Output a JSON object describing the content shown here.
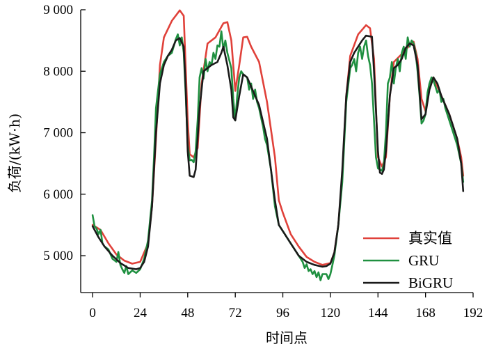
{
  "chart_data": {
    "type": "line",
    "xlabel": "时间点",
    "ylabel": "负荷/(kW·h)",
    "xlim": [
      -6,
      192
    ],
    "ylim": [
      4400,
      9000
    ],
    "xticks": [
      0,
      24,
      48,
      72,
      96,
      120,
      144,
      168,
      192
    ],
    "xtick_labels": [
      "0",
      "24",
      "48",
      "72",
      "96",
      "120",
      "144",
      "168",
      "192"
    ],
    "yticks": [
      5000,
      6000,
      7000,
      8000,
      9000
    ],
    "ytick_labels": [
      "5 000",
      "6 000",
      "7 000",
      "8 000",
      "9 000"
    ],
    "grid": false,
    "legend_position": "bottom-right",
    "series": [
      {
        "name": "真实值",
        "color": "#e0413a",
        "points": [
          [
            0,
            5500
          ],
          [
            4,
            5420
          ],
          [
            8,
            5200
          ],
          [
            12,
            5020
          ],
          [
            16,
            4920
          ],
          [
            20,
            4870
          ],
          [
            24,
            4900
          ],
          [
            28,
            5200
          ],
          [
            30,
            5800
          ],
          [
            32,
            6900
          ],
          [
            34,
            8100
          ],
          [
            36,
            8550
          ],
          [
            40,
            8820
          ],
          [
            44,
            8990
          ],
          [
            46,
            8900
          ],
          [
            48,
            7200
          ],
          [
            49,
            6650
          ],
          [
            51,
            6600
          ],
          [
            53,
            6750
          ],
          [
            55,
            7800
          ],
          [
            58,
            8450
          ],
          [
            62,
            8550
          ],
          [
            66,
            8780
          ],
          [
            68,
            8800
          ],
          [
            70,
            8500
          ],
          [
            72,
            7680
          ],
          [
            74,
            8100
          ],
          [
            76,
            8550
          ],
          [
            78,
            8560
          ],
          [
            80,
            8400
          ],
          [
            84,
            8150
          ],
          [
            88,
            7500
          ],
          [
            92,
            6600
          ],
          [
            94,
            5900
          ],
          [
            96,
            5700
          ],
          [
            100,
            5350
          ],
          [
            104,
            5150
          ],
          [
            108,
            4980
          ],
          [
            112,
            4900
          ],
          [
            116,
            4850
          ],
          [
            120,
            4880
          ],
          [
            122,
            5050
          ],
          [
            124,
            5500
          ],
          [
            126,
            6300
          ],
          [
            128,
            7600
          ],
          [
            130,
            8250
          ],
          [
            134,
            8600
          ],
          [
            138,
            8750
          ],
          [
            140,
            8700
          ],
          [
            142,
            8200
          ],
          [
            144,
            6600
          ],
          [
            146,
            6450
          ],
          [
            148,
            6600
          ],
          [
            150,
            7600
          ],
          [
            152,
            8150
          ],
          [
            156,
            8280
          ],
          [
            160,
            8420
          ],
          [
            162,
            8480
          ],
          [
            164,
            8200
          ],
          [
            166,
            7550
          ],
          [
            168,
            7350
          ],
          [
            170,
            7800
          ],
          [
            172,
            7900
          ],
          [
            176,
            7600
          ],
          [
            180,
            7300
          ],
          [
            184,
            6900
          ],
          [
            186,
            6600
          ],
          [
            187,
            6300
          ]
        ]
      },
      {
        "name": "GRU",
        "color": "#1f9040",
        "points": [
          [
            0,
            5660
          ],
          [
            1,
            5480
          ],
          [
            2,
            5440
          ],
          [
            3,
            5350
          ],
          [
            4,
            5420
          ],
          [
            5,
            5200
          ],
          [
            6,
            5150
          ],
          [
            8,
            5100
          ],
          [
            10,
            4950
          ],
          [
            12,
            4900
          ],
          [
            13,
            5060
          ],
          [
            14,
            4850
          ],
          [
            15,
            4780
          ],
          [
            16,
            4720
          ],
          [
            17,
            4830
          ],
          [
            18,
            4700
          ],
          [
            20,
            4760
          ],
          [
            22,
            4720
          ],
          [
            24,
            4780
          ],
          [
            26,
            4950
          ],
          [
            28,
            5250
          ],
          [
            30,
            5900
          ],
          [
            31,
            6600
          ],
          [
            32,
            7400
          ],
          [
            34,
            7950
          ],
          [
            36,
            8150
          ],
          [
            38,
            8250
          ],
          [
            40,
            8300
          ],
          [
            42,
            8520
          ],
          [
            43,
            8600
          ],
          [
            44,
            8420
          ],
          [
            45,
            8550
          ],
          [
            46,
            8300
          ],
          [
            47,
            7600
          ],
          [
            48,
            6800
          ],
          [
            49,
            6550
          ],
          [
            50,
            6560
          ],
          [
            51,
            6520
          ],
          [
            52,
            6700
          ],
          [
            53,
            7200
          ],
          [
            54,
            7900
          ],
          [
            55,
            8050
          ],
          [
            56,
            7880
          ],
          [
            57,
            8200
          ],
          [
            58,
            8000
          ],
          [
            59,
            8150
          ],
          [
            60,
            8100
          ],
          [
            61,
            8300
          ],
          [
            62,
            8200
          ],
          [
            63,
            8420
          ],
          [
            64,
            8400
          ],
          [
            65,
            8650
          ],
          [
            66,
            8350
          ],
          [
            67,
            8500
          ],
          [
            68,
            8300
          ],
          [
            70,
            8050
          ],
          [
            71,
            7550
          ],
          [
            72,
            7200
          ],
          [
            73,
            7600
          ],
          [
            74,
            7900
          ],
          [
            75,
            8000
          ],
          [
            76,
            7950
          ],
          [
            78,
            7900
          ],
          [
            79,
            7700
          ],
          [
            80,
            7800
          ],
          [
            81,
            7550
          ],
          [
            82,
            7700
          ],
          [
            83,
            7500
          ],
          [
            84,
            7400
          ],
          [
            85,
            7250
          ],
          [
            86,
            7100
          ],
          [
            87,
            6900
          ],
          [
            88,
            6800
          ],
          [
            90,
            6400
          ],
          [
            91,
            6100
          ],
          [
            92,
            5800
          ],
          [
            94,
            5500
          ],
          [
            96,
            5400
          ],
          [
            98,
            5300
          ],
          [
            100,
            5200
          ],
          [
            102,
            5100
          ],
          [
            104,
            5000
          ],
          [
            105,
            4950
          ],
          [
            106,
            4900
          ],
          [
            107,
            4800
          ],
          [
            108,
            4860
          ],
          [
            109,
            4750
          ],
          [
            110,
            4780
          ],
          [
            111,
            4700
          ],
          [
            112,
            4750
          ],
          [
            113,
            4650
          ],
          [
            114,
            4730
          ],
          [
            115,
            4600
          ],
          [
            116,
            4700
          ],
          [
            118,
            4700
          ],
          [
            119,
            4620
          ],
          [
            120,
            4700
          ],
          [
            121,
            4850
          ],
          [
            122,
            5000
          ],
          [
            124,
            5500
          ],
          [
            126,
            6200
          ],
          [
            128,
            7500
          ],
          [
            130,
            8050
          ],
          [
            131,
            8100
          ],
          [
            132,
            8200
          ],
          [
            133,
            8000
          ],
          [
            134,
            8300
          ],
          [
            135,
            8400
          ],
          [
            136,
            8200
          ],
          [
            137,
            8400
          ],
          [
            138,
            8500
          ],
          [
            139,
            8250
          ],
          [
            140,
            8100
          ],
          [
            141,
            7800
          ],
          [
            142,
            7200
          ],
          [
            143,
            6600
          ],
          [
            144,
            6420
          ],
          [
            145,
            6400
          ],
          [
            146,
            6380
          ],
          [
            147,
            6500
          ],
          [
            148,
            7000
          ],
          [
            149,
            7800
          ],
          [
            150,
            7900
          ],
          [
            151,
            8150
          ],
          [
            152,
            7800
          ],
          [
            153,
            8050
          ],
          [
            154,
            8200
          ],
          [
            155,
            8000
          ],
          [
            156,
            8300
          ],
          [
            157,
            8400
          ],
          [
            158,
            8200
          ],
          [
            159,
            8550
          ],
          [
            160,
            8400
          ],
          [
            161,
            8500
          ],
          [
            162,
            8450
          ],
          [
            163,
            8300
          ],
          [
            164,
            8000
          ],
          [
            165,
            7600
          ],
          [
            166,
            7150
          ],
          [
            167,
            7200
          ],
          [
            168,
            7300
          ],
          [
            169,
            7650
          ],
          [
            170,
            7800
          ],
          [
            171,
            7900
          ],
          [
            172,
            7850
          ],
          [
            173,
            7750
          ],
          [
            174,
            7650
          ],
          [
            175,
            7700
          ],
          [
            176,
            7500
          ],
          [
            177,
            7550
          ],
          [
            178,
            7400
          ],
          [
            180,
            7200
          ],
          [
            182,
            7000
          ],
          [
            184,
            6800
          ],
          [
            186,
            6500
          ],
          [
            187,
            6200
          ]
        ]
      },
      {
        "name": "BiGRU",
        "color": "#1a1a1a",
        "points": [
          [
            0,
            5480
          ],
          [
            3,
            5300
          ],
          [
            6,
            5150
          ],
          [
            10,
            5000
          ],
          [
            14,
            4880
          ],
          [
            18,
            4800
          ],
          [
            22,
            4780
          ],
          [
            24,
            4800
          ],
          [
            26,
            4900
          ],
          [
            28,
            5150
          ],
          [
            30,
            5800
          ],
          [
            32,
            7000
          ],
          [
            34,
            7800
          ],
          [
            36,
            8100
          ],
          [
            38,
            8250
          ],
          [
            40,
            8350
          ],
          [
            42,
            8500
          ],
          [
            44,
            8540
          ],
          [
            46,
            8400
          ],
          [
            47,
            7700
          ],
          [
            48,
            6700
          ],
          [
            49,
            6300
          ],
          [
            51,
            6280
          ],
          [
            52,
            6400
          ],
          [
            54,
            7400
          ],
          [
            56,
            8000
          ],
          [
            60,
            8100
          ],
          [
            63,
            8150
          ],
          [
            65,
            8300
          ],
          [
            66,
            8400
          ],
          [
            68,
            8100
          ],
          [
            70,
            7700
          ],
          [
            71,
            7250
          ],
          [
            72,
            7200
          ],
          [
            74,
            7600
          ],
          [
            76,
            7950
          ],
          [
            78,
            7900
          ],
          [
            80,
            7750
          ],
          [
            84,
            7450
          ],
          [
            88,
            6900
          ],
          [
            90,
            6400
          ],
          [
            92,
            5900
          ],
          [
            94,
            5500
          ],
          [
            96,
            5400
          ],
          [
            100,
            5200
          ],
          [
            104,
            5000
          ],
          [
            108,
            4900
          ],
          [
            112,
            4850
          ],
          [
            116,
            4820
          ],
          [
            118,
            4830
          ],
          [
            120,
            4870
          ],
          [
            122,
            5050
          ],
          [
            124,
            5500
          ],
          [
            126,
            6400
          ],
          [
            128,
            7600
          ],
          [
            130,
            8150
          ],
          [
            132,
            8300
          ],
          [
            134,
            8400
          ],
          [
            136,
            8500
          ],
          [
            138,
            8580
          ],
          [
            141,
            8560
          ],
          [
            142,
            8000
          ],
          [
            144,
            6700
          ],
          [
            145,
            6350
          ],
          [
            146,
            6330
          ],
          [
            147,
            6400
          ],
          [
            148,
            6700
          ],
          [
            150,
            7600
          ],
          [
            152,
            8050
          ],
          [
            154,
            8100
          ],
          [
            156,
            8200
          ],
          [
            158,
            8380
          ],
          [
            160,
            8450
          ],
          [
            162,
            8420
          ],
          [
            164,
            8100
          ],
          [
            165,
            7650
          ],
          [
            166,
            7220
          ],
          [
            168,
            7300
          ],
          [
            170,
            7700
          ],
          [
            172,
            7900
          ],
          [
            174,
            7800
          ],
          [
            176,
            7600
          ],
          [
            180,
            7300
          ],
          [
            184,
            6900
          ],
          [
            186,
            6500
          ],
          [
            187,
            6050
          ]
        ]
      }
    ]
  }
}
